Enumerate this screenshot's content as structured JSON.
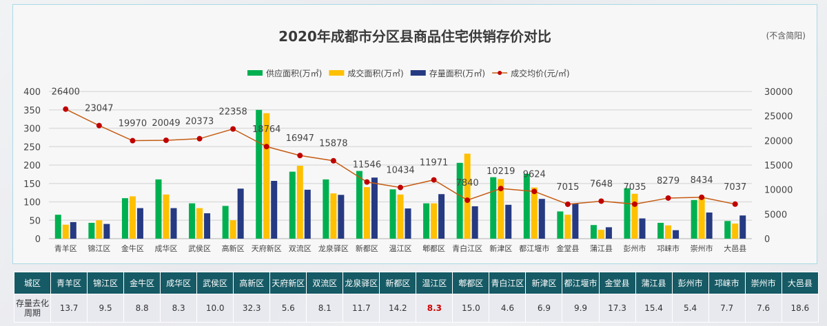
{
  "chart_data": {
    "type": "bar",
    "title": "2020年成都市分区县商品住宅供销存价对比",
    "note": "(不含简阳)",
    "categories": [
      "青羊区",
      "锦江区",
      "金牛区",
      "成华区",
      "武侯区",
      "高新区",
      "天府新区",
      "双流区",
      "龙泉驿区",
      "新都区",
      "温江区",
      "郫都区",
      "青白江区",
      "新津区",
      "都江堰市",
      "金堂县",
      "蒲江县",
      "彭州市",
      "邛崃市",
      "崇州市",
      "大邑县"
    ],
    "series": [
      {
        "name": "供应面积(万㎡)",
        "type": "bar",
        "axis": "left",
        "color": "#00b050",
        "values": [
          65,
          43,
          110,
          161,
          96,
          89,
          350,
          182,
          161,
          184,
          134,
          96,
          206,
          167,
          176,
          74,
          37,
          137,
          43,
          105,
          48
        ]
      },
      {
        "name": "成交面积(万㎡)",
        "type": "bar",
        "axis": "left",
        "color": "#ffc000",
        "values": [
          38,
          50,
          115,
          120,
          83,
          50,
          341,
          198,
          123,
          140,
          120,
          96,
          231,
          162,
          139,
          65,
          24,
          122,
          36,
          112,
          41
        ]
      },
      {
        "name": "存量面积(万㎡)",
        "type": "bar",
        "axis": "left",
        "color": "#253a82",
        "values": [
          45,
          40,
          83,
          83,
          69,
          136,
          157,
          133,
          119,
          166,
          82,
          121,
          88,
          92,
          108,
          95,
          31,
          55,
          23,
          71,
          63
        ]
      },
      {
        "name": "成交均价(元/㎡)",
        "type": "line",
        "axis": "right",
        "color": "#c55a11",
        "marker_color": "#c00000",
        "values": [
          26400,
          23047,
          19970,
          20049,
          20373,
          22358,
          18764,
          16947,
          15878,
          11546,
          10434,
          11971,
          7840,
          10219,
          9624,
          7015,
          7648,
          7035,
          8279,
          8434,
          7037
        ]
      }
    ],
    "y_left": {
      "ticks": [
        0,
        50,
        100,
        150,
        200,
        250,
        300,
        350,
        400
      ],
      "ylim": [
        0,
        400
      ]
    },
    "y_right": {
      "ticks": [
        0,
        5000,
        10000,
        15000,
        20000,
        25000,
        30000
      ],
      "ylim": [
        0,
        30000
      ]
    },
    "legend_position": "top-center",
    "grid": true,
    "xlabel": "",
    "ylabel": ""
  },
  "table": {
    "header_label": "城区",
    "row_label": "存量去化周期",
    "row_label_lines": [
      "存量去化",
      "周期"
    ],
    "columns": [
      "青羊区",
      "锦江区",
      "金牛区",
      "成华区",
      "武侯区",
      "高新区",
      "天府新区",
      "双流区",
      "龙泉驿区",
      "新都区",
      "温江区",
      "郫都区",
      "青白江区",
      "新津区",
      "都江堰市",
      "金堂县",
      "蒲江县",
      "彭州市",
      "邛崃市",
      "崇州市",
      "大邑县"
    ],
    "values": [
      "13.7",
      "9.5",
      "8.8",
      "8.3",
      "10.0",
      "32.3",
      "5.6",
      "8.1",
      "11.7",
      "14.2",
      "8.3",
      "15.0",
      "4.6",
      "6.9",
      "9.9",
      "17.3",
      "15.4",
      "5.4",
      "7.7",
      "7.6",
      "18.6"
    ],
    "highlight_index": 10,
    "highlight_color": "#d00000"
  }
}
